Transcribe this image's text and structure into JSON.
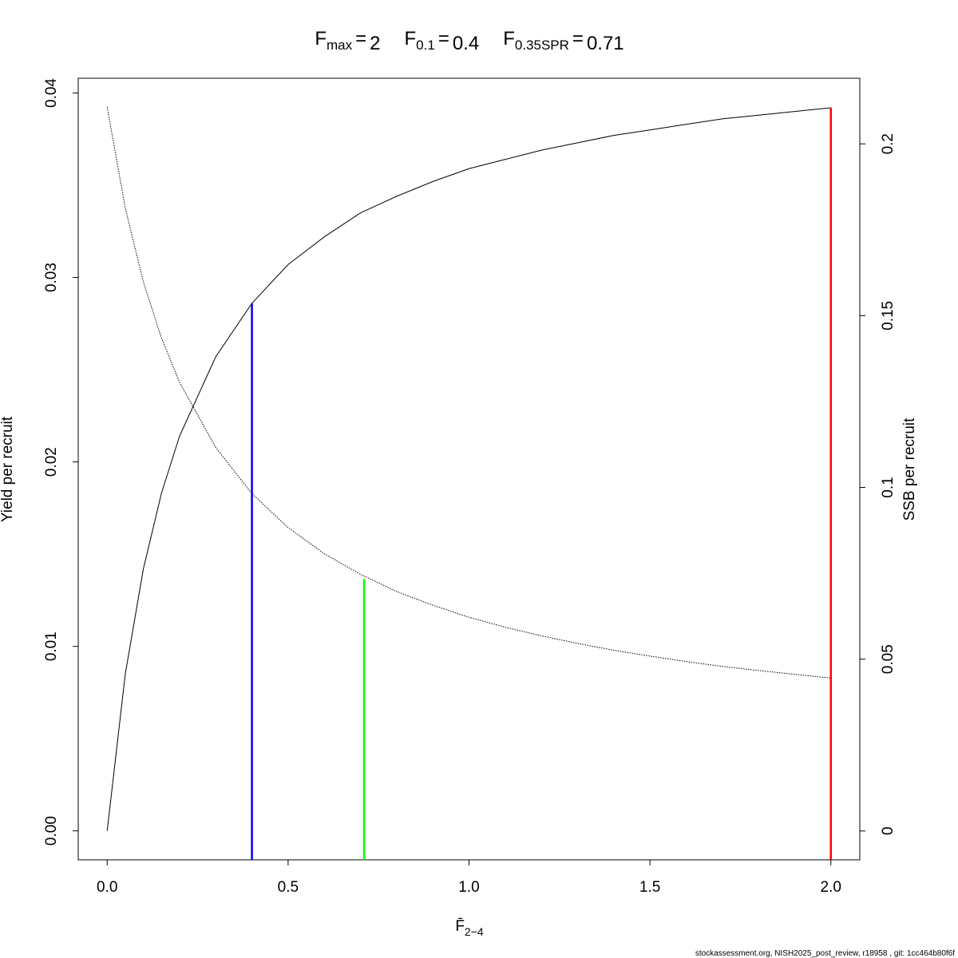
{
  "chart_data": {
    "type": "line",
    "reference_lines": [
      {
        "symbol": "F",
        "subscript": "max",
        "equals": "=",
        "value": 2,
        "color": "#ff0000",
        "height": 0.0392,
        "axis": "y"
      },
      {
        "symbol": "F",
        "subscript": "0.1",
        "equals": "=",
        "value": 0.4,
        "color": "#0000ff",
        "height": 0.0286,
        "axis": "y"
      },
      {
        "symbol": "F",
        "subscript": "0.35SPR",
        "equals": "=",
        "value": 0.71,
        "color": "#00ff00",
        "height": 0.0733,
        "axis": "y2"
      }
    ],
    "xlabel": {
      "text": "F̄",
      "subscript": "2−4"
    },
    "ylabel": "Yield per recruit",
    "y2label": "SSB per recruit",
    "footer": "stockassessment.org, NISH2025_post_review, r18958 , git: 1cc464b80f6f",
    "x": [
      0,
      0.05,
      0.1,
      0.15,
      0.2,
      0.3,
      0.4,
      0.5,
      0.6,
      0.7,
      0.8,
      0.9,
      1.0,
      1.1,
      1.2,
      1.3,
      1.4,
      1.5,
      1.6,
      1.7,
      1.8,
      1.9,
      2.0
    ],
    "series": [
      {
        "name": "Yield per recruit",
        "color": "#000000",
        "axis": "y",
        "dash": "solid",
        "values": [
          0,
          0.0085,
          0.0142,
          0.0183,
          0.0214,
          0.0257,
          0.0286,
          0.0307,
          0.0322,
          0.0335,
          0.0344,
          0.0352,
          0.0359,
          0.0364,
          0.0369,
          0.0373,
          0.0377,
          0.038,
          0.0383,
          0.0386,
          0.0388,
          0.039,
          0.0392
        ]
      },
      {
        "name": "SSB per recruit",
        "color": "#000000",
        "axis": "y2",
        "dash": "dotted",
        "values": [
          0.2107,
          0.1813,
          0.1598,
          0.1435,
          0.1306,
          0.1116,
          0.0982,
          0.0883,
          0.0807,
          0.0747,
          0.0697,
          0.0657,
          0.0622,
          0.0593,
          0.0568,
          0.0546,
          0.0526,
          0.0509,
          0.0493,
          0.0479,
          0.0467,
          0.0456,
          0.0445
        ]
      }
    ],
    "xlim": [
      -0.08,
      2.08
    ],
    "xticks": [
      {
        "value": 0,
        "label": "0.0"
      },
      0.5,
      {
        "value": 1,
        "label": "1.0"
      },
      1.5,
      {
        "value": 2,
        "label": "2.0"
      }
    ],
    "ylim": [
      -0.00157,
      0.0408
    ],
    "yticks": [
      {
        "value": 0,
        "label": "0.00"
      },
      0.01,
      0.02,
      0.03,
      0.04
    ],
    "y2lim": [
      -0.0084,
      0.2191
    ],
    "y2ticks": [
      0,
      0.05,
      0.1,
      0.15,
      0.2
    ]
  }
}
